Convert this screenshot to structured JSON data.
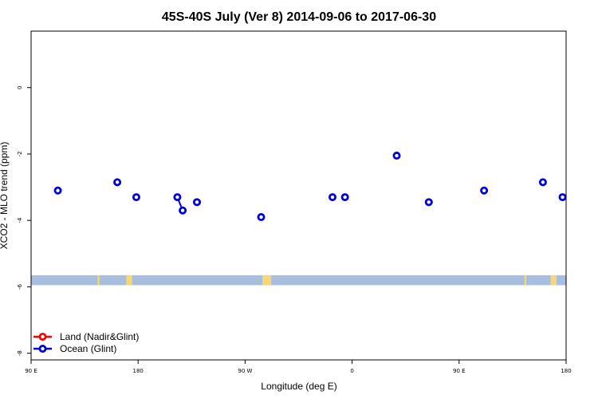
{
  "chart_data": {
    "type": "scatter",
    "title": "45S-40S July (Ver 8)   2014-09-06 to 2017-06-30",
    "xlabel": "Longitude (deg E)",
    "ylabel": "XCO2 - MLO trend (ppm)",
    "xlim": [
      90,
      540
    ],
    "ylim": [
      -8.2,
      1.7
    ],
    "x_ticks": [
      {
        "value": 90,
        "label": "90 E"
      },
      {
        "value": 180,
        "label": "180"
      },
      {
        "value": 270,
        "label": "90 W"
      },
      {
        "value": 360,
        "label": "0"
      },
      {
        "value": 450,
        "label": "90 E"
      },
      {
        "value": 540,
        "label": "180"
      }
    ],
    "y_ticks": [
      {
        "value": 0,
        "label": "0"
      },
      {
        "value": -2,
        "label": "-2"
      },
      {
        "value": -4,
        "label": "-4"
      },
      {
        "value": -6,
        "label": "-6"
      },
      {
        "value": -8,
        "label": "-8"
      }
    ],
    "grid": false,
    "legend_position": "bottom-left",
    "series": [
      {
        "name": "Land (Nadir&Glint)",
        "color": "#ff0000",
        "points": []
      },
      {
        "name": "Ocean (Glint)",
        "color": "#0000dd",
        "points": [
          [
            112.5,
            -3.1
          ],
          [
            162.5,
            -2.85
          ],
          [
            178.5,
            -3.3
          ],
          [
            213,
            -3.3
          ],
          [
            217.5,
            -3.7
          ],
          [
            229.5,
            -3.45
          ],
          [
            283.5,
            -3.9
          ],
          [
            343.5,
            -3.3
          ],
          [
            354,
            -3.3
          ],
          [
            397.5,
            -2.05
          ],
          [
            424.5,
            -3.45
          ],
          [
            471,
            -3.1
          ],
          [
            520.5,
            -2.85
          ],
          [
            537,
            -3.3
          ]
        ],
        "connected_pairs": [
          [
            3,
            4
          ]
        ]
      }
    ],
    "land_mask": {
      "y_range": [
        -5.95,
        -5.65
      ],
      "ocean_color": "#a8bedc",
      "land_color": "#f5d77a",
      "land_lon_segments": [
        [
          146,
          147.5
        ],
        [
          170,
          175
        ],
        [
          284.5,
          292
        ],
        [
          505,
          506.5
        ],
        [
          527,
          532
        ]
      ]
    }
  }
}
